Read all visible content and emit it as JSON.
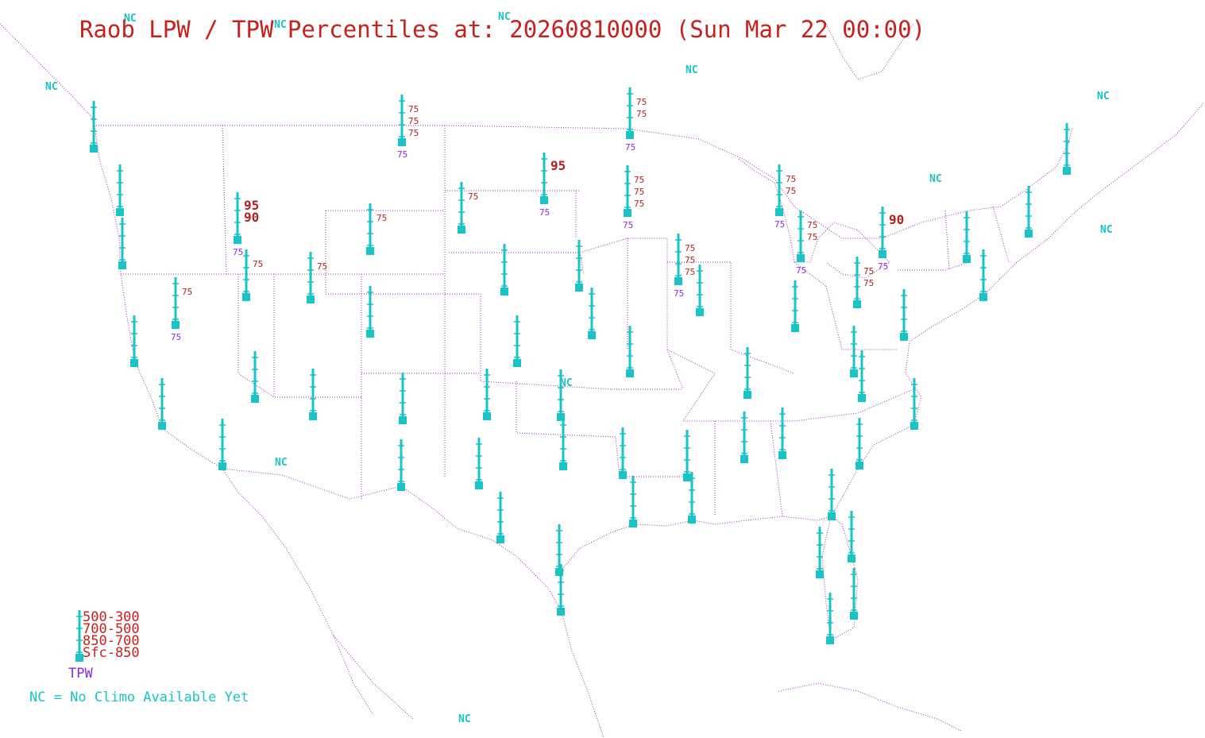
{
  "title": "Raob LPW / TPW Percentiles at: 20260810000 (Sun Mar 22 00:00)",
  "colors": {
    "title": "#c8201c",
    "layer_label": "#b22222",
    "tpw_label": "#8a2be2",
    "marker": "#19c3c6",
    "nc": "#19c3c6",
    "boundary": "#9a2fb0"
  },
  "legend": {
    "layers": [
      "500-300",
      "700-500",
      "850-700",
      "Sfc-850"
    ],
    "tpw": "TPW",
    "nc_note": "NC = No Climo Available Yet"
  },
  "nc_label": "NC",
  "stations": [
    {
      "labels": [],
      "tpw": ""
    },
    {
      "labels": [
        "75",
        "75",
        "75"
      ],
      "tpw": "75"
    },
    {
      "labels": [
        "75",
        "75"
      ],
      "tpw": "75"
    },
    {
      "labels": [],
      "tpw": ""
    },
    {
      "labels": [],
      "tpw": ""
    },
    {
      "labels": [
        "95"
      ],
      "tpw": "75"
    },
    {
      "labels": [
        "75"
      ],
      "tpw": ""
    },
    {
      "labels": [
        "75",
        "75",
        "75"
      ],
      "tpw": "75"
    },
    {
      "labels": [
        "75",
        "75"
      ],
      "tpw": "75"
    },
    {
      "labels": [
        "75",
        "75"
      ],
      "tpw": "75"
    },
    {
      "labels": [
        "90"
      ],
      "tpw": "75"
    },
    {
      "labels": [
        "95",
        "90"
      ],
      "tpw": "75"
    },
    {
      "labels": [
        "75"
      ],
      "tpw": ""
    },
    {
      "labels": [
        "75"
      ],
      "tpw": ""
    },
    {
      "labels": [
        "75"
      ],
      "tpw": "75"
    },
    {
      "labels": [
        "75",
        "75",
        "75"
      ],
      "tpw": "75"
    },
    {
      "labels": [
        "75"
      ],
      "tpw": ""
    },
    {
      "labels": [
        "75",
        "75"
      ],
      "tpw": ""
    }
  ]
}
